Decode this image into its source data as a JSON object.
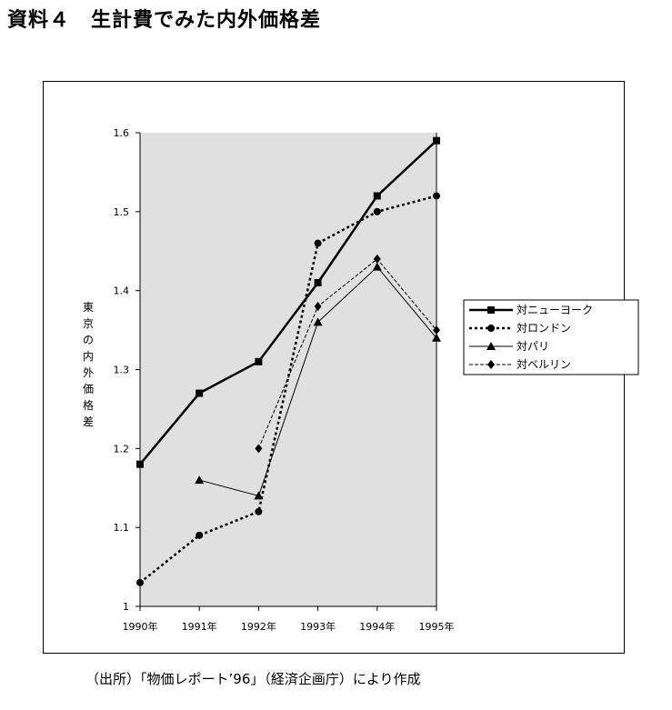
{
  "page": {
    "title": "資料４　生計費でみた内外価格差",
    "source": "（出所）「物価レポート’96」（経済企画庁）により作成"
  },
  "chart_data": {
    "type": "line",
    "title": "",
    "ylabel": "東京の内外価格差",
    "xlabel": "",
    "categories": [
      "1990年",
      "1991年",
      "1992年",
      "1993年",
      "1994年",
      "1995年"
    ],
    "ylim": [
      1,
      1.6
    ],
    "yticks": [
      "1",
      "1.1",
      "1.2",
      "1.3",
      "1.4",
      "1.5",
      "1.6"
    ],
    "grid": false,
    "plot_background": "#e0e0e0",
    "legend_position": "right",
    "series": [
      {
        "name": "対ニューヨーク",
        "values": [
          1.18,
          1.27,
          1.31,
          1.41,
          1.52,
          1.59
        ],
        "marker": "square",
        "line": "solid-thick"
      },
      {
        "name": "対ロンドン",
        "values": [
          1.03,
          1.09,
          1.12,
          1.46,
          1.5,
          1.52
        ],
        "marker": "circle",
        "line": "dotted-thick"
      },
      {
        "name": "対パリ",
        "values": [
          null,
          1.16,
          1.14,
          1.36,
          1.43,
          1.34
        ],
        "marker": "triangle",
        "line": "solid-thin"
      },
      {
        "name": "対ベルリン",
        "values": [
          null,
          null,
          1.2,
          1.38,
          1.44,
          1.35
        ],
        "marker": "diamond",
        "line": "dashed-thin"
      }
    ]
  }
}
